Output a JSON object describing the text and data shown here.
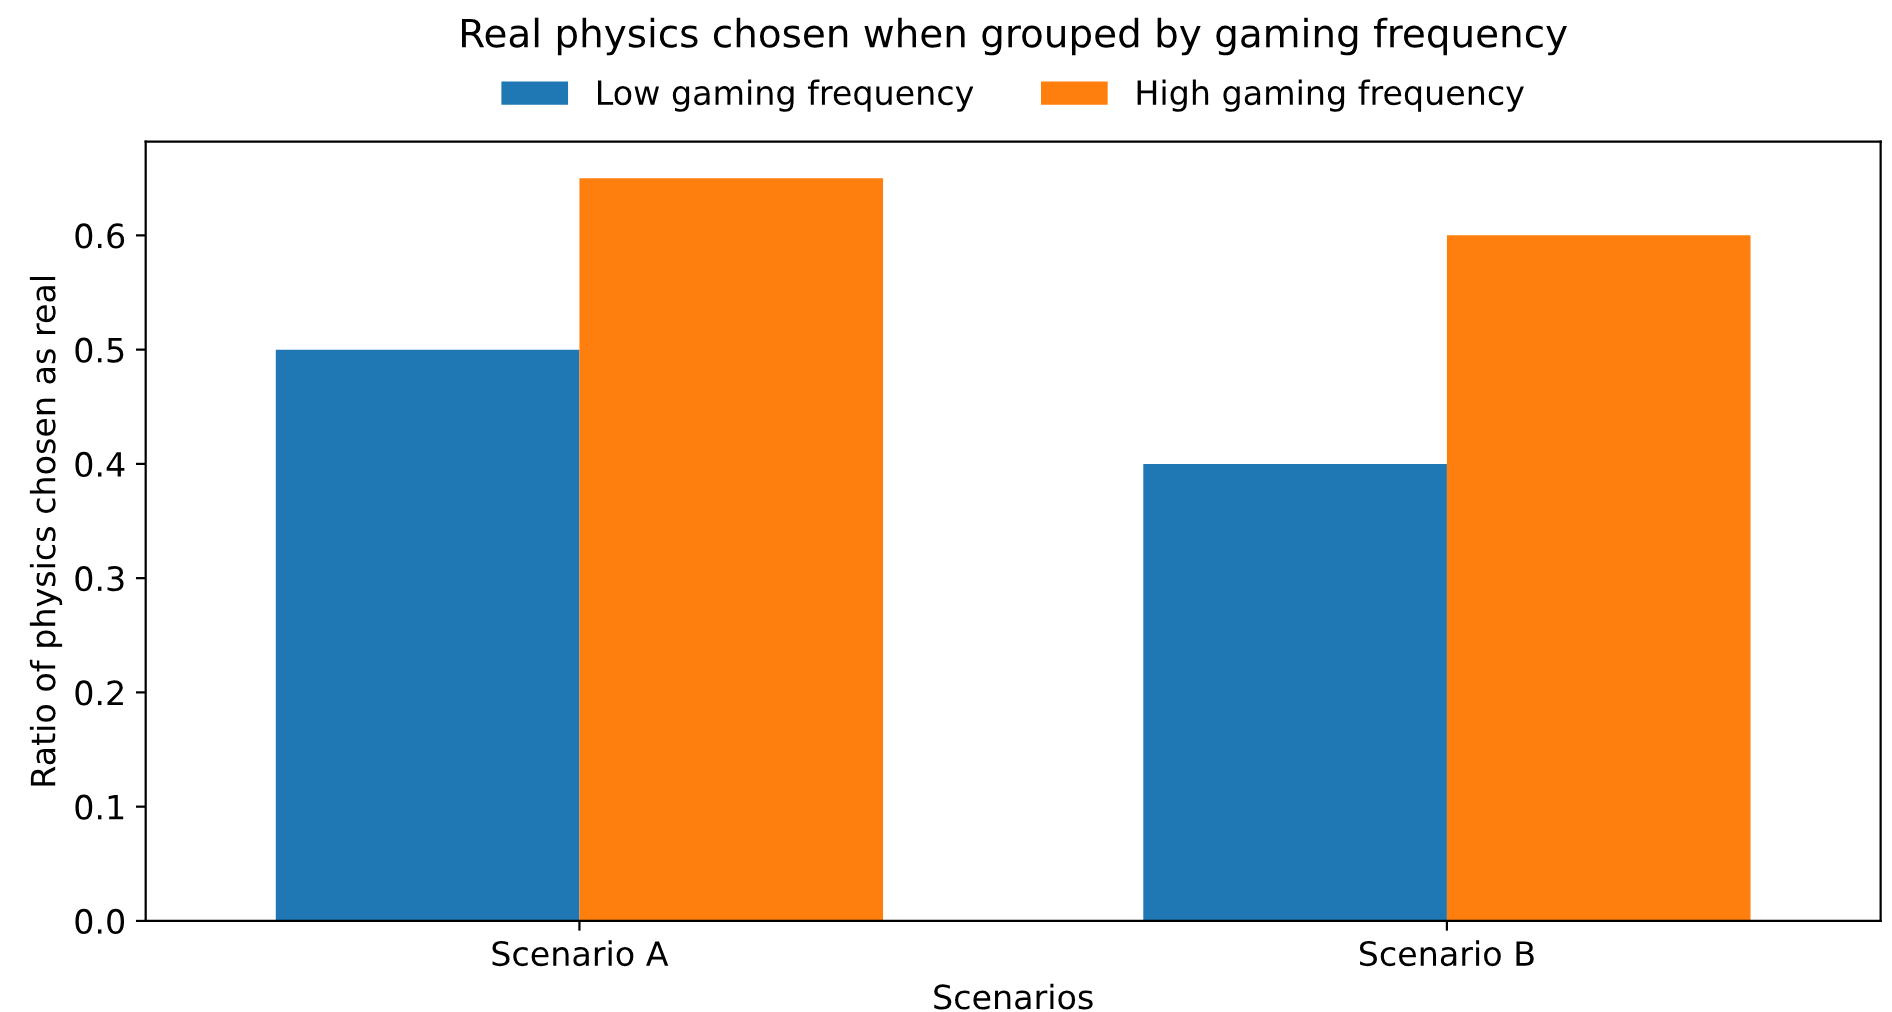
{
  "chart_data": {
    "type": "bar",
    "title": "Real physics chosen when grouped by gaming frequency",
    "xlabel": "Scenarios",
    "ylabel": "Ratio of physics chosen as real",
    "categories": [
      "Scenario A",
      "Scenario B"
    ],
    "series": [
      {
        "name": "Low gaming frequency",
        "color": "#1f77b4",
        "values": [
          0.5,
          0.4
        ]
      },
      {
        "name": "High gaming frequency",
        "color": "#ff7f0e",
        "values": [
          0.65,
          0.6
        ]
      }
    ],
    "ylim": [
      0,
      0.682
    ],
    "yticks": [
      {
        "value": 0,
        "label": "0.0"
      },
      0.1,
      0.2,
      0.3,
      0.4,
      0.5,
      0.6
    ],
    "legend": "top",
    "grid": false
  }
}
